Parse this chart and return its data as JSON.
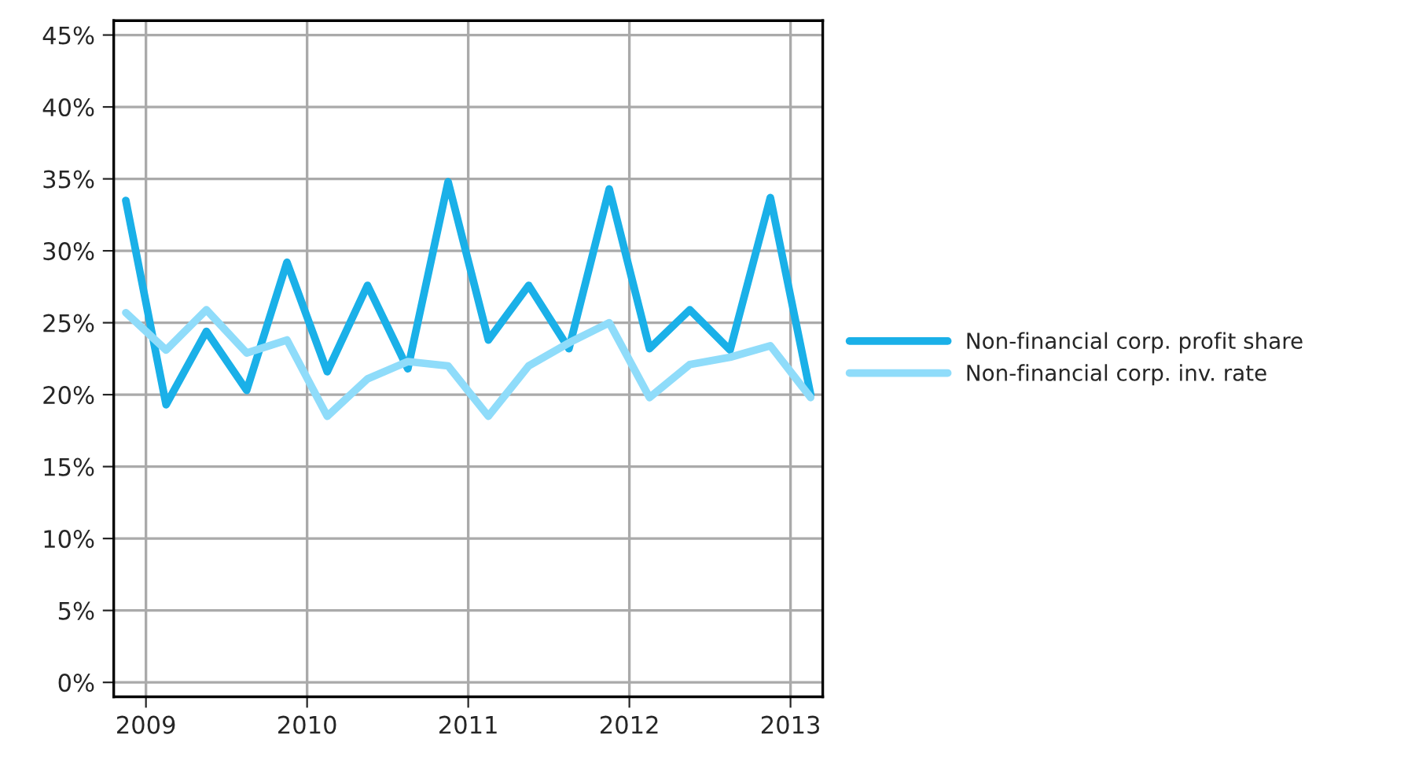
{
  "chart_data": {
    "type": "line",
    "x": [
      2008.875,
      2009.125,
      2009.375,
      2009.625,
      2009.875,
      2010.125,
      2010.375,
      2010.625,
      2010.875,
      2011.125,
      2011.375,
      2011.625,
      2011.875,
      2012.125,
      2012.375,
      2012.625,
      2012.875,
      2013.125
    ],
    "series": [
      {
        "name": "Non-financial corp. profit share",
        "color": "#1ab0e8",
        "values": [
          33.5,
          19.3,
          24.4,
          20.3,
          29.2,
          21.6,
          27.6,
          21.8,
          34.8,
          23.8,
          27.6,
          23.2,
          34.3,
          23.2,
          25.9,
          23.1,
          33.7,
          20.0
        ]
      },
      {
        "name": "Non-financial corp. inv. rate",
        "color": "#8fdcfa",
        "values": [
          25.7,
          23.1,
          25.9,
          22.9,
          23.8,
          18.5,
          21.1,
          22.3,
          22.0,
          18.5,
          22.0,
          23.6,
          25.0,
          19.8,
          22.1,
          22.6,
          23.4,
          19.8
        ]
      }
    ],
    "xlim": [
      2008.8,
      2013.2
    ],
    "xticks": [
      2009,
      2010,
      2011,
      2012,
      2013
    ],
    "ylim": [
      -1,
      46
    ],
    "yticks": [
      {
        "value": 0,
        "label": "0%"
      },
      {
        "value": 5,
        "label": "5%"
      },
      {
        "value": 10,
        "label": "10%"
      },
      {
        "value": 15,
        "label": "15%"
      },
      {
        "value": 20,
        "label": "20%"
      },
      {
        "value": 25,
        "label": "25%"
      },
      {
        "value": 30,
        "label": "30%"
      },
      {
        "value": 35,
        "label": "35%"
      },
      {
        "value": 40,
        "label": "40%"
      },
      {
        "value": 45,
        "label": "45%"
      }
    ],
    "grid": true,
    "legend": "right",
    "line_style": "solid",
    "marker": "none"
  }
}
